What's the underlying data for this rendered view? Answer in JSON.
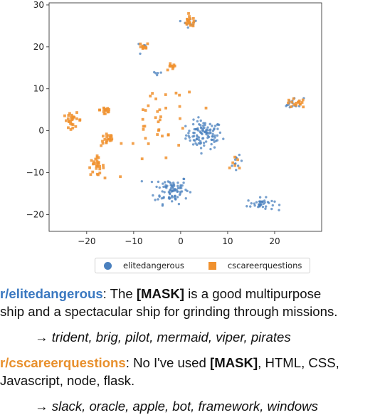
{
  "chart_data": {
    "type": "scatter",
    "xlim": [
      -28,
      30
    ],
    "ylim": [
      -24,
      30.5
    ],
    "x_ticks": [
      -20,
      -10,
      0,
      10,
      20
    ],
    "y_ticks": [
      -20,
      -10,
      0,
      10,
      20,
      30
    ],
    "grid": false,
    "legend_position": "bottom-center",
    "series": [
      {
        "name": "elitedangerous",
        "marker": "circle",
        "color": "#4a80be",
        "clusters": [
          {
            "center": [
              5,
              -1
            ],
            "spread": [
              3.2,
              2.8
            ],
            "count": 105
          },
          {
            "center": [
              -2,
              -14
            ],
            "spread": [
              3.0,
              2.8
            ],
            "count": 85
          },
          {
            "center": [
              17,
              -17.5
            ],
            "spread": [
              2.4,
              1.2
            ],
            "count": 38
          },
          {
            "center": [
              24,
              6.5
            ],
            "spread": [
              1.8,
              1.2
            ],
            "count": 14
          },
          {
            "center": [
              2,
              26
            ],
            "spread": [
              1.2,
              1.1
            ],
            "count": 10
          },
          {
            "center": [
              12,
              -8
            ],
            "spread": [
              0.9,
              1.6
            ],
            "count": 10
          },
          {
            "center": [
              -8,
              20
            ],
            "spread": [
              1.0,
              0.8
            ],
            "count": 6
          },
          {
            "center": [
              -5,
              14
            ],
            "spread": [
              1.0,
              1.0
            ],
            "count": 5
          }
        ]
      },
      {
        "name": "cscareerquestions",
        "marker": "square",
        "color": "#f0912e",
        "clusters": [
          {
            "center": [
              -23,
              2.5
            ],
            "spread": [
              1.6,
              1.4
            ],
            "count": 26
          },
          {
            "center": [
              -18,
              -8.5
            ],
            "spread": [
              1.4,
              1.8
            ],
            "count": 28
          },
          {
            "center": [
              -15.5,
              -2
            ],
            "spread": [
              1.2,
              1.4
            ],
            "count": 20
          },
          {
            "center": [
              -16,
              5
            ],
            "spread": [
              1.0,
              1.4
            ],
            "count": 16
          },
          {
            "center": [
              2,
              26
            ],
            "spread": [
              1.2,
              1.0
            ],
            "count": 18
          },
          {
            "center": [
              -8,
              20
            ],
            "spread": [
              1.0,
              0.8
            ],
            "count": 10
          },
          {
            "center": [
              -2,
              15
            ],
            "spread": [
              0.8,
              0.9
            ],
            "count": 9
          },
          {
            "center": [
              24.5,
              6.5
            ],
            "spread": [
              1.8,
              0.9
            ],
            "count": 16
          },
          {
            "center": [
              12,
              -8
            ],
            "spread": [
              1.0,
              1.6
            ],
            "count": 6
          },
          {
            "center": [
              -4,
              2
            ],
            "spread": [
              6.5,
              8.5
            ],
            "count": 40
          }
        ]
      }
    ]
  },
  "legend": {
    "items": [
      {
        "label": "elitedangerous"
      },
      {
        "label": "cscareerquestions"
      }
    ]
  },
  "captions": {
    "example1": {
      "subreddit": "r/elitedangerous",
      "text_before": ": The ",
      "mask": "[MASK]",
      "text_after": " is a good multipurpose",
      "line2": "ship and a spectacular ship for grinding through missions.",
      "arrow": "→",
      "predictions": "trident, brig, pilot, mermaid, viper, pirates"
    },
    "example2": {
      "subreddit": "r/cscareerquestions",
      "text_before": ": No I've used ",
      "mask": "[MASK]",
      "text_after": ", HTML, CSS,",
      "line2": "Javascript, node, flask.",
      "arrow": "→",
      "predictions": "slack, oracle, apple, bot, framework, windows"
    }
  },
  "colors": {
    "elite": "#3a78c0",
    "cscareer": "#e8902d"
  }
}
